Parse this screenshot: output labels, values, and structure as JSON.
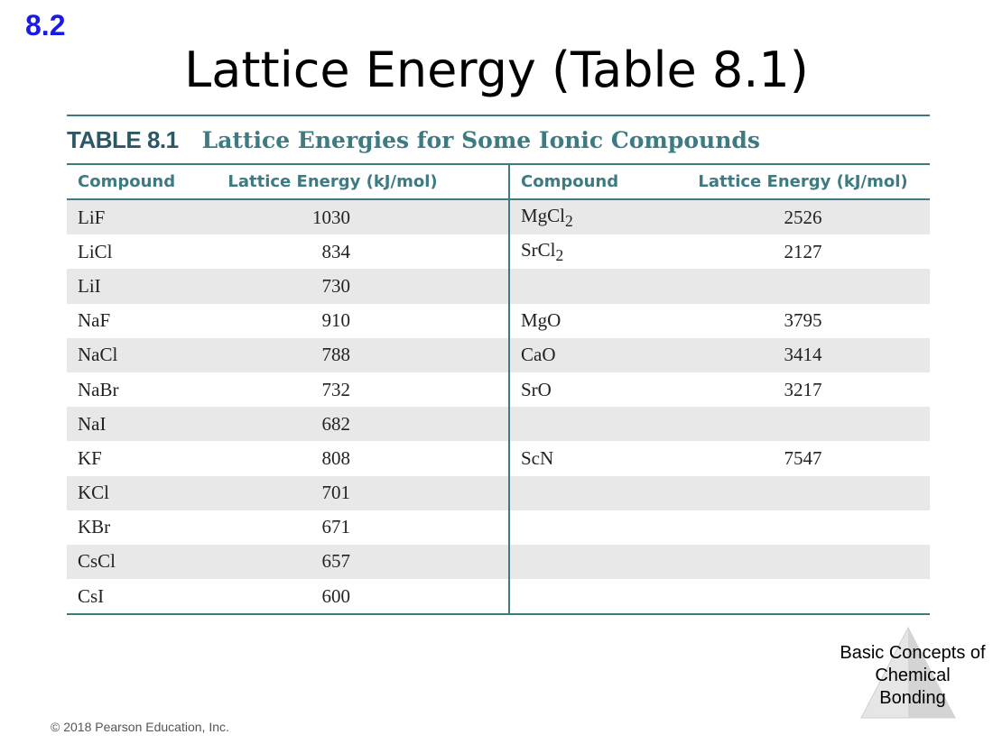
{
  "slide": {
    "section": "8.2",
    "title": "Lattice Energy (Table 8.1)",
    "footer_tag": "Basic Concepts of Chemical Bonding",
    "copyright": "© 2018 Pearson Education, Inc."
  },
  "table": {
    "number": "TABLE 8.1",
    "title": "Lattice Energies for Some Ionic Compounds",
    "headers": [
      "Compound",
      "Lattice Energy (kJ/mol)",
      "Compound",
      "Lattice Energy (kJ/mol)"
    ],
    "rows": [
      {
        "c1": "LiF",
        "v1": "1030",
        "c2": "MgCl",
        "c2sub": "2",
        "v2": "2526"
      },
      {
        "c1": "LiCl",
        "v1": "834",
        "c2": "SrCl",
        "c2sub": "2",
        "v2": "2127"
      },
      {
        "c1": "LiI",
        "v1": "730",
        "c2": "",
        "c2sub": "",
        "v2": ""
      },
      {
        "c1": "NaF",
        "v1": "910",
        "c2": "MgO",
        "c2sub": "",
        "v2": "3795"
      },
      {
        "c1": "NaCl",
        "v1": "788",
        "c2": "CaO",
        "c2sub": "",
        "v2": "3414"
      },
      {
        "c1": "NaBr",
        "v1": "732",
        "c2": "SrO",
        "c2sub": "",
        "v2": "3217"
      },
      {
        "c1": "NaI",
        "v1": "682",
        "c2": "",
        "c2sub": "",
        "v2": ""
      },
      {
        "c1": "KF",
        "v1": "808",
        "c2": "ScN",
        "c2sub": "",
        "v2": "7547"
      },
      {
        "c1": "KCl",
        "v1": "701",
        "c2": "",
        "c2sub": "",
        "v2": ""
      },
      {
        "c1": "KBr",
        "v1": "671",
        "c2": "",
        "c2sub": "",
        "v2": ""
      },
      {
        "c1": "CsCl",
        "v1": "657",
        "c2": "",
        "c2sub": "",
        "v2": ""
      },
      {
        "c1": "CsI",
        "v1": "600",
        "c2": "",
        "c2sub": "",
        "v2": ""
      }
    ]
  },
  "colors": {
    "section": "#1a1ae6",
    "table_accent": "#3d7a82",
    "row_shade": "#e8e8e8"
  }
}
